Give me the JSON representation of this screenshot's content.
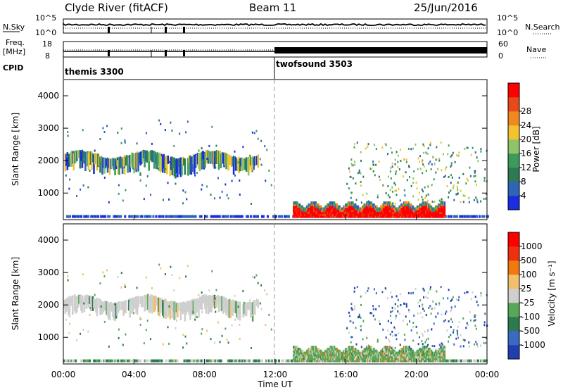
{
  "header": {
    "station": "Clyde River (fitACF)",
    "beam": "Beam 11",
    "date": "25/Jun/2016"
  },
  "strip_labels": {
    "nsky": "N.Sky",
    "freq_top": "Freq.",
    "freq_unit": "[MHz]",
    "cpid": "CPID",
    "nsearch": "N.Search",
    "nave": "Nave",
    "tick_1e5": "10^5",
    "tick_1e0": "10^0",
    "tick_18": "18",
    "tick_8": "8",
    "tick_60": "60",
    "tick_0": "0"
  },
  "cpid_modes": [
    {
      "label": "themis 3300"
    },
    {
      "label": "twofsound 3503"
    }
  ],
  "time_axis": {
    "label": "Time UT",
    "ticks": [
      "00:00",
      "04:00",
      "08:00",
      "12:00",
      "16:00",
      "20:00",
      "00:00"
    ]
  },
  "power_colorbar": {
    "title": "Power [dB]",
    "ticks": [
      "4",
      "8",
      "12",
      "16",
      "20",
      "24",
      "28"
    ],
    "colors": [
      "#1a2de0",
      "#2f64b7",
      "#2f7a54",
      "#3d9a5a",
      "#8fc46a",
      "#f2c230",
      "#f08a20",
      "#e64a1a",
      "#ff0000"
    ]
  },
  "velocity_colorbar": {
    "title": "Velocity [m s⁻¹]",
    "ticks": [
      "1000",
      "500",
      "100",
      "25",
      "-25",
      "-100",
      "-500",
      "-1000"
    ],
    "colors": [
      "#1f3fb0",
      "#3a6ac4",
      "#2c7a4f",
      "#56a858",
      "#cfcfcf",
      "#f2c06a",
      "#f07a10",
      "#ee3010",
      "#ff0000"
    ]
  },
  "chart_data": [
    {
      "type": "heatmap",
      "title": "Power",
      "ylabel": "Slant Range [km]",
      "xlabel": "Time UT",
      "xlim": [
        "00:00",
        "24:00"
      ],
      "ylim": [
        180,
        4500
      ],
      "yticks": [
        "1000",
        "2000",
        "3000",
        "4000"
      ],
      "colorbar_label": "Power [dB]"
    },
    {
      "type": "heatmap",
      "title": "Velocity",
      "ylabel": "Slant Range [km]",
      "xlabel": "Time UT",
      "xlim": [
        "00:00",
        "24:00"
      ],
      "ylim": [
        180,
        4500
      ],
      "yticks": [
        "1000",
        "2000",
        "3000",
        "4000"
      ],
      "colorbar_label": "Velocity [m s⁻¹]"
    }
  ]
}
